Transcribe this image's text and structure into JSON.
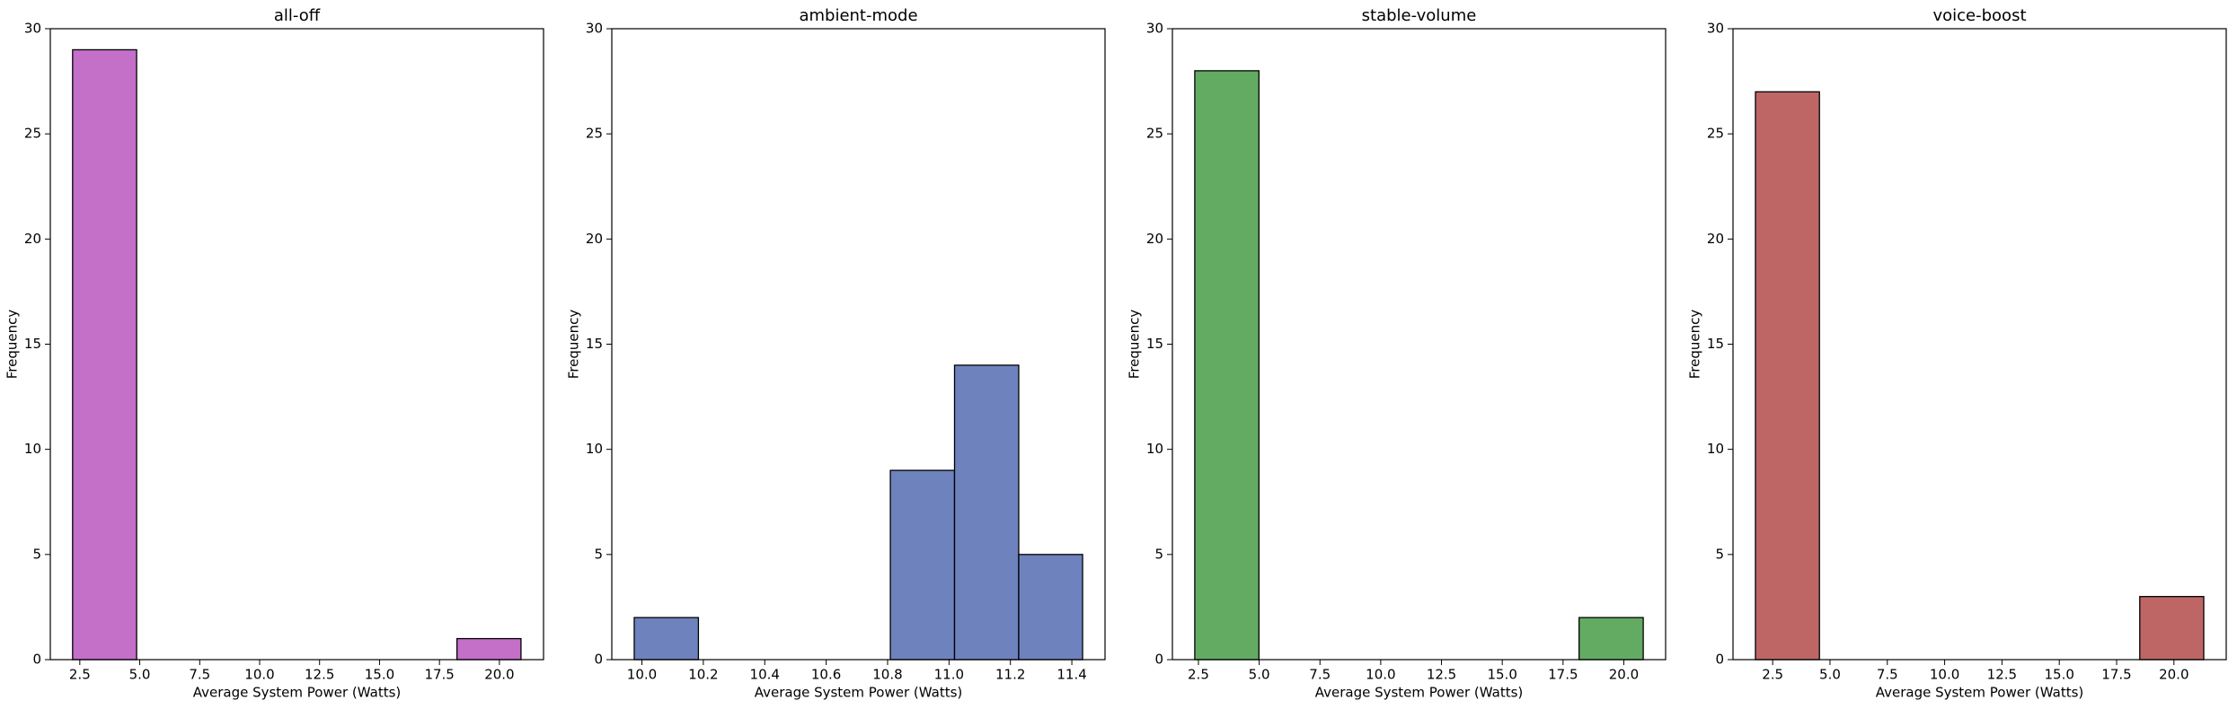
{
  "chart_data": [
    {
      "type": "histogram",
      "title": "all-off",
      "x_label": "Average System Power (Watts)",
      "y_label": "Frequency",
      "color": "#c46fc8",
      "bins": [
        2.2,
        4.87,
        7.54,
        10.21,
        12.89,
        15.56,
        18.23,
        20.9
      ],
      "values": [
        29,
        0,
        0,
        0,
        0,
        0,
        1
      ],
      "xlim": [
        1.27,
        21.84
      ],
      "ylim": [
        0,
        30
      ],
      "xticks": [
        2.5,
        {
          "value": 5,
          "label": "5.0"
        },
        7.5,
        {
          "value": 10,
          "label": "10.0"
        },
        12.5,
        {
          "value": 15,
          "label": "15.0"
        },
        17.5,
        {
          "value": 20,
          "label": "20.0"
        }
      ],
      "yticks": [
        0,
        5,
        10,
        15,
        20,
        25,
        30
      ]
    },
    {
      "type": "histogram",
      "title": "ambient-mode",
      "x_label": "Average System Power (Watts)",
      "y_label": "Frequency",
      "color": "#6e82bd",
      "bins": [
        9.975,
        10.184,
        10.392,
        10.601,
        10.809,
        11.018,
        11.227,
        11.435
      ],
      "values": [
        2,
        0,
        0,
        0,
        9,
        14,
        5
      ],
      "xlim": [
        9.902,
        11.508
      ],
      "ylim": [
        0,
        30
      ],
      "xticks": [
        {
          "value": 10,
          "label": "10.0"
        },
        10.2,
        10.4,
        10.6,
        10.8,
        {
          "value": 11,
          "label": "11.0"
        },
        11.2,
        11.4
      ],
      "yticks": [
        0,
        5,
        10,
        15,
        20,
        25,
        30
      ]
    },
    {
      "type": "histogram",
      "title": "stable-volume",
      "x_label": "Average System Power (Watts)",
      "y_label": "Frequency",
      "color": "#63ab63",
      "bins": [
        2.35,
        4.99,
        7.62,
        10.26,
        12.89,
        15.53,
        18.16,
        20.8
      ],
      "values": [
        28,
        0,
        0,
        0,
        0,
        0,
        2
      ],
      "xlim": [
        1.43,
        21.72
      ],
      "ylim": [
        0,
        30
      ],
      "xticks": [
        2.5,
        {
          "value": 5,
          "label": "5.0"
        },
        7.5,
        {
          "value": 10,
          "label": "10.0"
        },
        12.5,
        {
          "value": 15,
          "label": "15.0"
        },
        17.5,
        {
          "value": 20,
          "label": "20.0"
        }
      ],
      "yticks": [
        0,
        5,
        10,
        15,
        20,
        25,
        30
      ]
    },
    {
      "type": "histogram",
      "title": "voice-boost",
      "x_label": "Average System Power (Watts)",
      "y_label": "Frequency",
      "color": "#be6666",
      "bins": [
        1.75,
        4.54,
        7.34,
        10.13,
        12.92,
        15.71,
        18.51,
        21.3
      ],
      "values": [
        27,
        0,
        0,
        0,
        0,
        0,
        3
      ],
      "xlim": [
        0.77,
        22.28
      ],
      "ylim": [
        0,
        30
      ],
      "xticks": [
        2.5,
        {
          "value": 5,
          "label": "5.0"
        },
        7.5,
        {
          "value": 10,
          "label": "10.0"
        },
        12.5,
        {
          "value": 15,
          "label": "15.0"
        },
        17.5,
        {
          "value": 20,
          "label": "20.0"
        }
      ],
      "yticks": [
        0,
        5,
        10,
        15,
        20,
        25,
        30
      ]
    }
  ]
}
